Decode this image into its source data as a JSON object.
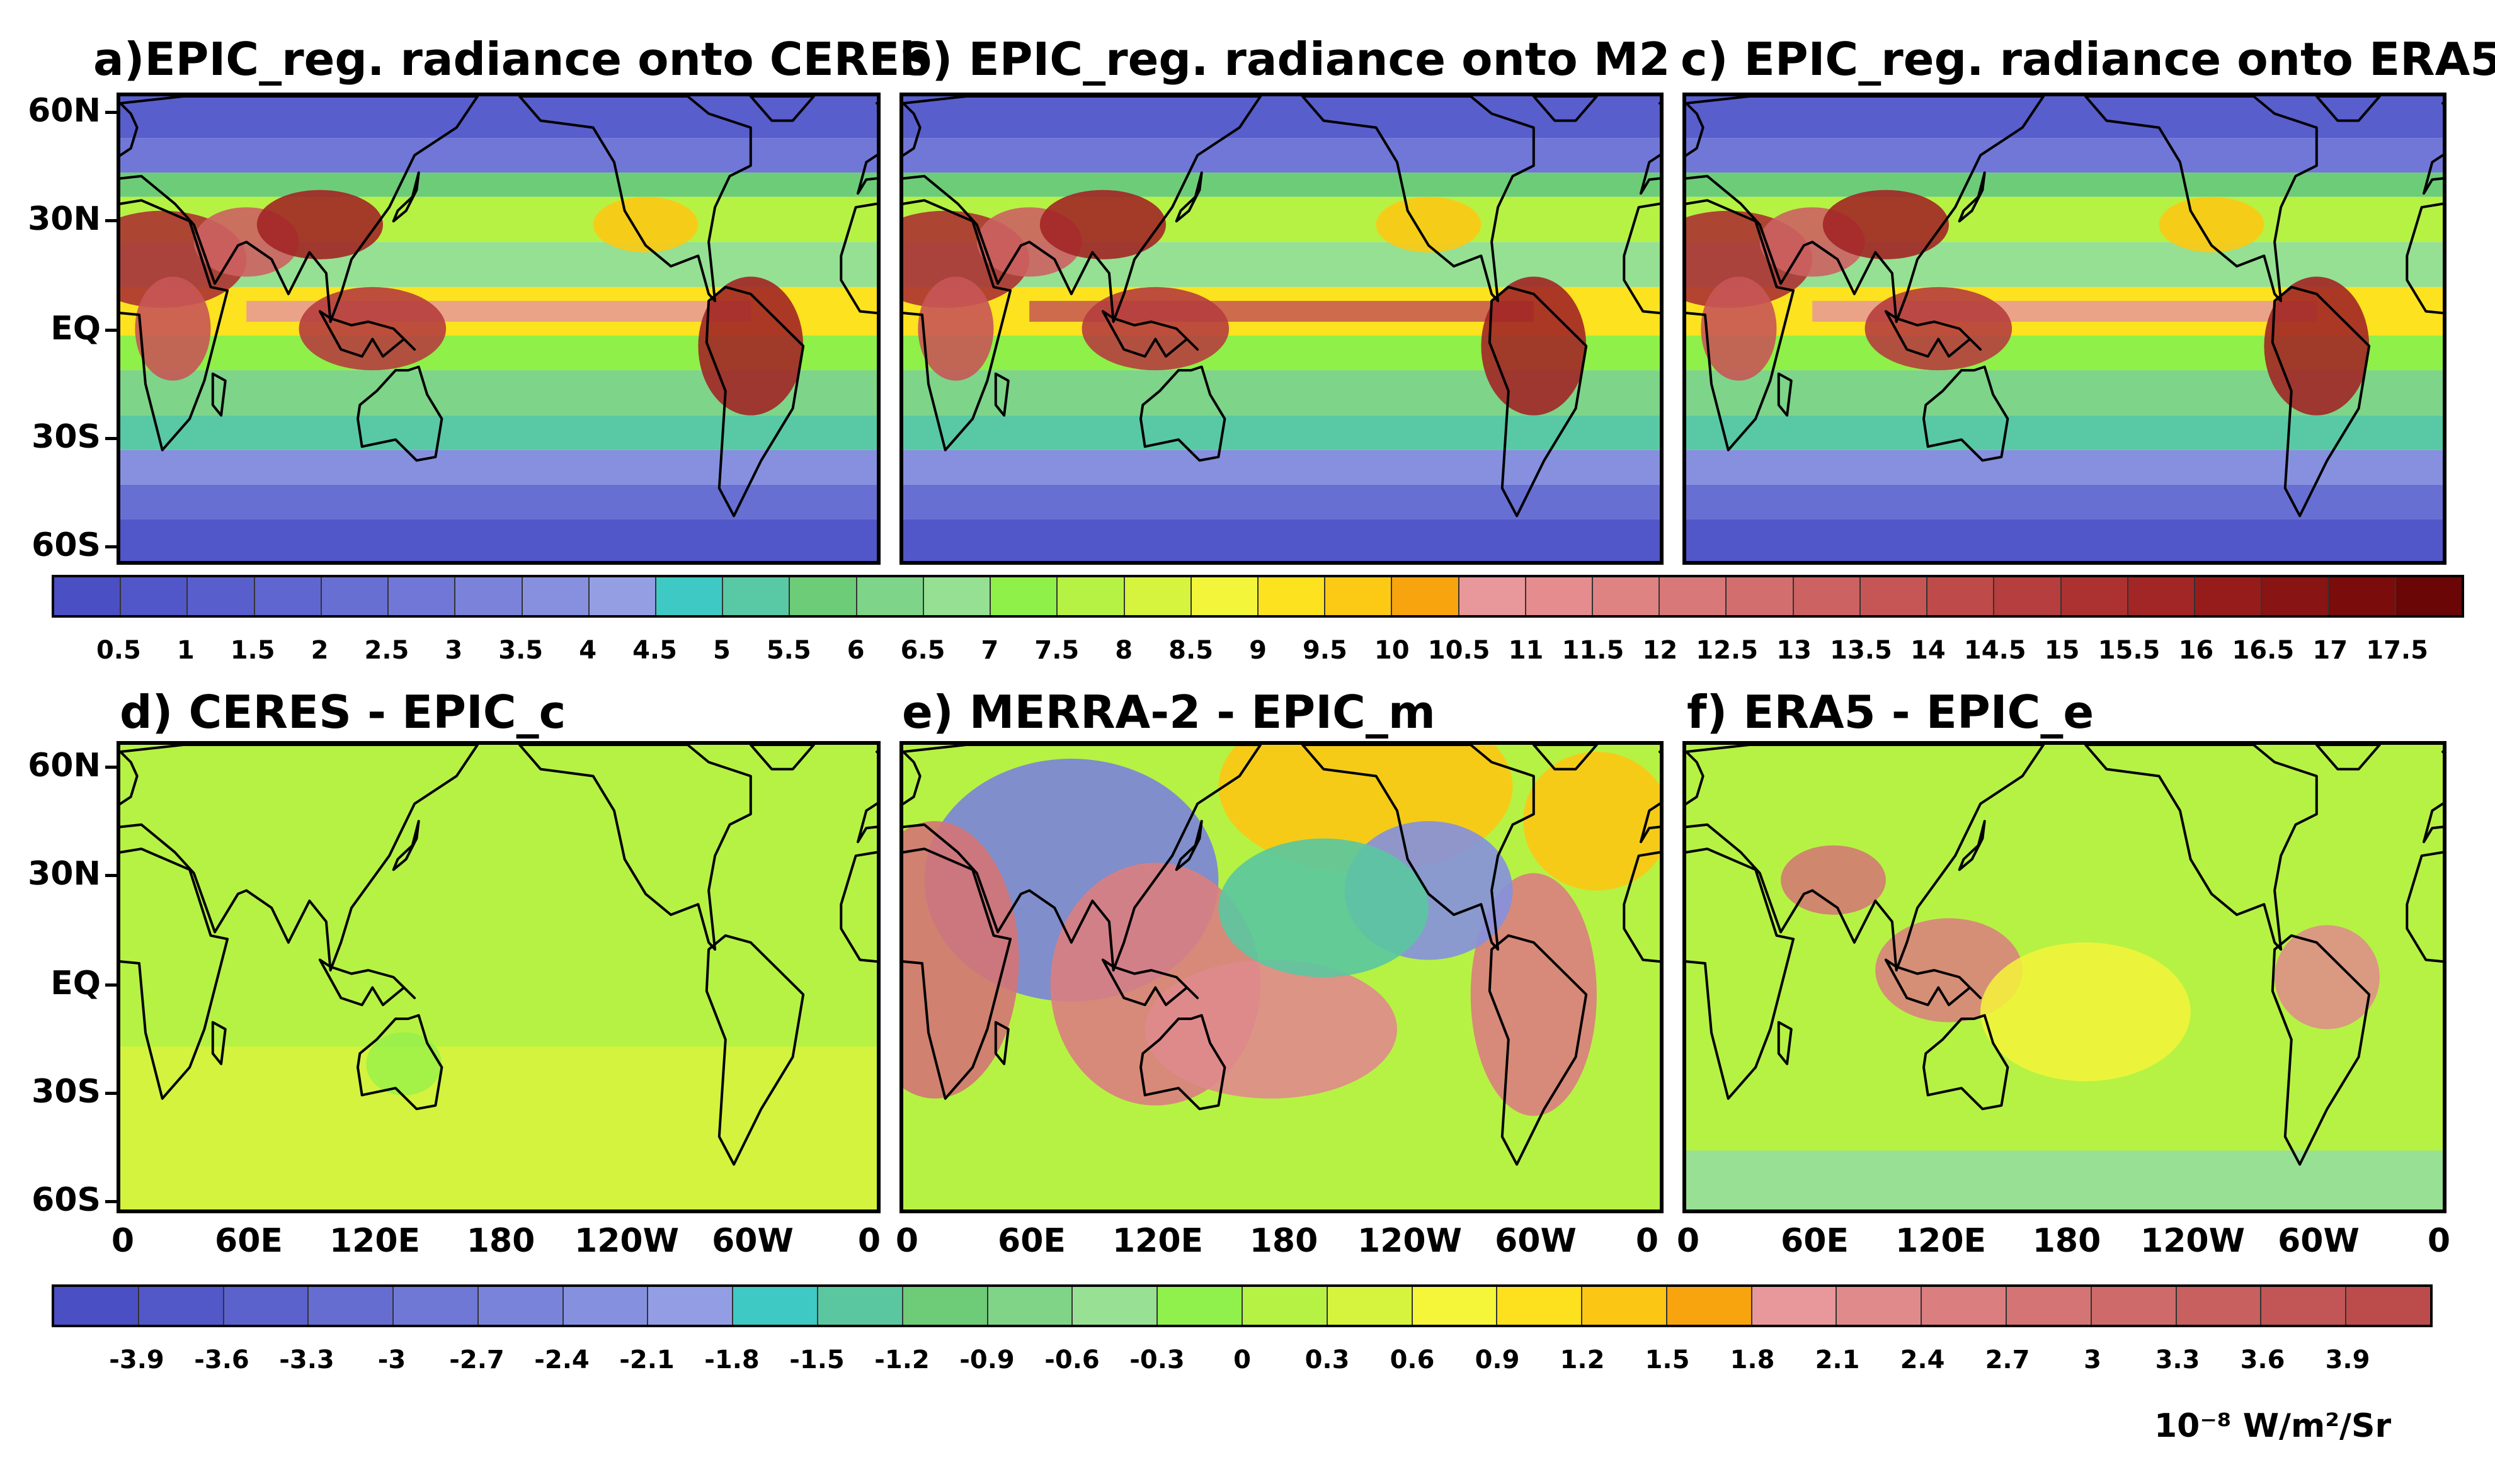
{
  "panels": [
    {
      "title": "a)EPIC_reg. radiance onto CERES",
      "kind": "mean",
      "variant": 0
    },
    {
      "title": "b) EPIC_reg. radiance onto M2",
      "kind": "mean",
      "variant": 1
    },
    {
      "title": "c) EPIC_reg. radiance onto ERA5",
      "kind": "mean",
      "variant": 2
    },
    {
      "title": "d) CERES - EPIC_c",
      "kind": "diff",
      "variant": 0
    },
    {
      "title": "e) MERRA-2 - EPIC_m",
      "kind": "diff",
      "variant": 1
    },
    {
      "title": "f) ERA5 - EPIC_e",
      "kind": "diff",
      "variant": 2
    }
  ],
  "lat_labels": [
    "60N",
    "30N",
    "EQ",
    "30S",
    "60S"
  ],
  "lon_labels": [
    "0",
    "60E",
    "120E",
    "180",
    "120W",
    "60W",
    "0"
  ],
  "top_colorbar": {
    "labels": [
      "0.5",
      "1",
      "1.5",
      "2",
      "2.5",
      "3",
      "3.5",
      "4",
      "4.5",
      "5",
      "5.5",
      "6",
      "6.5",
      "7",
      "7.5",
      "8",
      "8.5",
      "9",
      "9.5",
      "10",
      "10.5",
      "11",
      "11.5",
      "12",
      "12.5",
      "13",
      "13.5",
      "14",
      "14.5",
      "15",
      "15.5",
      "16",
      "16.5",
      "17",
      "17.5"
    ],
    "colors": [
      "#4a4fc4",
      "#5156c8",
      "#585ecb",
      "#6066cf",
      "#686fd3",
      "#7077d6",
      "#7a82da",
      "#8690de",
      "#949fe3",
      "#3ec9c4",
      "#58c9a4",
      "#6dcc78",
      "#7ed488",
      "#95e092",
      "#8ef048",
      "#b6f244",
      "#d6f33e",
      "#f2f53a",
      "#fce21f",
      "#fcc914",
      "#f8a40e",
      "#e8989a",
      "#e48c8e",
      "#de8282",
      "#d87878",
      "#d26e6e",
      "#cc6262",
      "#c65656",
      "#bf4a4a",
      "#b63e3e",
      "#ac3232",
      "#a22626",
      "#961c1c",
      "#881414",
      "#7a0c0c",
      "#6a0606"
    ]
  },
  "bottom_colorbar": {
    "labels": [
      "-3.9",
      "-3.6",
      "-3.3",
      "-3",
      "-2.7",
      "-2.4",
      "-2.1",
      "-1.8",
      "-1.5",
      "-1.2",
      "-0.9",
      "-0.6",
      "-0.3",
      "0",
      "0.3",
      "0.6",
      "0.9",
      "1.2",
      "1.5",
      "1.8",
      "2.1",
      "2.4",
      "2.7",
      "3",
      "3.3",
      "3.6",
      "3.9"
    ],
    "colors": [
      "#4a4fc4",
      "#5258c8",
      "#5c62cc",
      "#666dd1",
      "#7078d5",
      "#7a83da",
      "#8590de",
      "#929de3",
      "#3ec9c4",
      "#5ac7a0",
      "#6ecb78",
      "#80d488",
      "#98e094",
      "#90f04c",
      "#b6f244",
      "#d6f33e",
      "#f5f53a",
      "#fde01e",
      "#fcc614",
      "#f8a40e",
      "#e8989a",
      "#e08a8c",
      "#da7e80",
      "#d47474",
      "#ce6a6a",
      "#c86060",
      "#c25656",
      "#bc4c4c"
    ]
  },
  "units": "10⁻⁸ W/m²/Sr"
}
